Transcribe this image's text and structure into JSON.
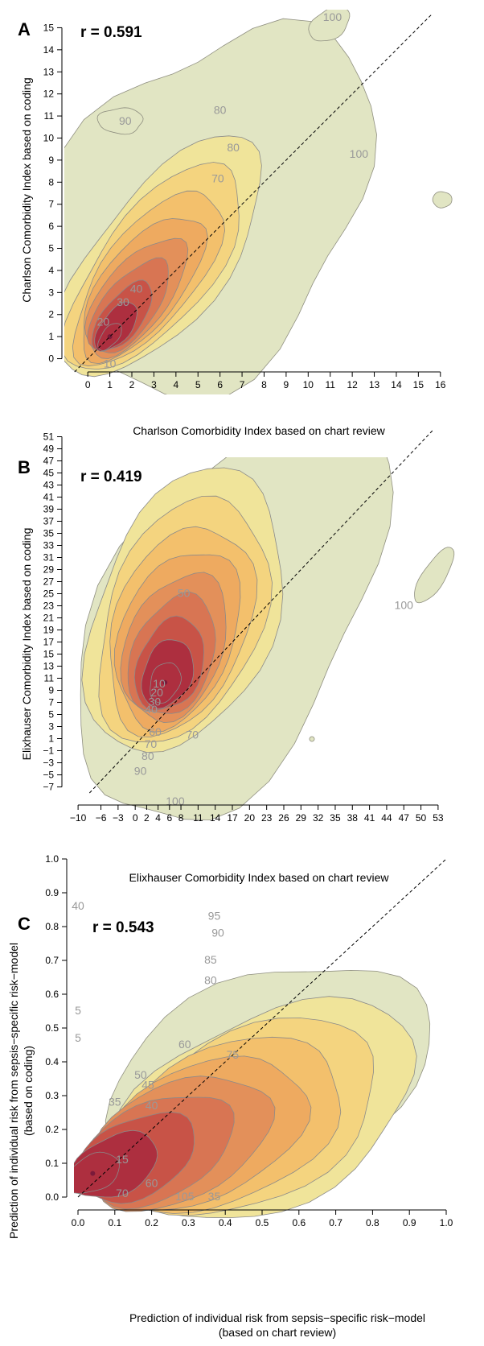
{
  "chart_data": [
    {
      "panel": "A",
      "type": "contour",
      "annotation": "r = 0.591",
      "xlabel": "Charlson Comorbidity Index based on chart review",
      "ylabel": "Charlson Comorbidity Index based on coding",
      "x_ticks": [
        0,
        1,
        2,
        3,
        4,
        5,
        6,
        7,
        8,
        9,
        10,
        11,
        12,
        13,
        14,
        15,
        16
      ],
      "y_ticks": [
        0,
        1,
        2,
        3,
        4,
        5,
        6,
        7,
        8,
        9,
        10,
        11,
        12,
        13,
        14,
        15
      ],
      "xlim": [
        -0.7,
        16.3
      ],
      "ylim": [
        -0.6,
        15.6
      ],
      "reference_line": "identity",
      "contour_labels": [
        {
          "text": "100",
          "x": 11.1,
          "y": 15.3
        },
        {
          "text": "90",
          "x": 1.7,
          "y": 10.6
        },
        {
          "text": "80",
          "x": 6.0,
          "y": 11.1
        },
        {
          "text": "80",
          "x": 6.6,
          "y": 9.4
        },
        {
          "text": "70",
          "x": 5.9,
          "y": 8.0
        },
        {
          "text": "100",
          "x": 12.3,
          "y": 9.1
        },
        {
          "text": "40",
          "x": 2.2,
          "y": 3.0
        },
        {
          "text": "30",
          "x": 1.6,
          "y": 2.4
        },
        {
          "text": "20",
          "x": 0.7,
          "y": 1.5
        },
        {
          "text": "10",
          "x": 1.0,
          "y": -0.4
        }
      ],
      "center": [
        1.0,
        1.0
      ]
    },
    {
      "panel": "B",
      "type": "contour",
      "annotation": "r = 0.419",
      "xlabel": "Elixhauser Comorbidity Index based on chart review",
      "ylabel": "Elixhauser Comorbidity Index based on coding",
      "x_ticks": [
        -10,
        -6,
        -3,
        0,
        2,
        4,
        6,
        8,
        11,
        14,
        17,
        20,
        23,
        26,
        29,
        32,
        35,
        38,
        41,
        44,
        47,
        50,
        53
      ],
      "y_ticks": [
        -7,
        -5,
        -3,
        -1,
        1,
        3,
        5,
        7,
        9,
        11,
        13,
        15,
        17,
        19,
        21,
        23,
        25,
        27,
        29,
        31,
        33,
        35,
        37,
        39,
        41,
        43,
        45,
        47,
        49,
        51
      ],
      "xlim": [
        -11,
        54
      ],
      "ylim": [
        -8,
        52
      ],
      "reference_line": "identity",
      "contour_labels": [
        {
          "text": "50",
          "x": 8.5,
          "y": 24.5
        },
        {
          "text": "10",
          "x": 4.2,
          "y": 9.5
        },
        {
          "text": "20",
          "x": 3.8,
          "y": 8.0
        },
        {
          "text": "30",
          "x": 3.4,
          "y": 6.5
        },
        {
          "text": "40",
          "x": 2.8,
          "y": 5.2
        },
        {
          "text": "60",
          "x": 3.5,
          "y": 1.5
        },
        {
          "text": "70",
          "x": 2.7,
          "y": -0.5
        },
        {
          "text": "80",
          "x": 2.2,
          "y": -2.5
        },
        {
          "text": "90",
          "x": 0.9,
          "y": -5.0
        },
        {
          "text": "70",
          "x": 10.0,
          "y": 1.0
        },
        {
          "text": "100",
          "x": 47.0,
          "y": 22.5
        },
        {
          "text": "100",
          "x": 7.0,
          "y": -10.0
        }
      ],
      "center": [
        5.2,
        10.3
      ]
    },
    {
      "panel": "C",
      "type": "contour",
      "annotation": "r = 0.543",
      "xlabel": "Prediction of individual risk from sepsis−specific risk−model",
      "xlabel2": "(based on chart review)",
      "ylabel": "Prediction of individual risk from sepsis−specific risk−model",
      "ylabel2": "(based on coding)",
      "x_ticks": [
        0.0,
        0.1,
        0.2,
        0.3,
        0.4,
        0.5,
        0.6,
        0.7,
        0.8,
        0.9,
        1.0
      ],
      "y_ticks": [
        0.0,
        0.1,
        0.2,
        0.3,
        0.4,
        0.5,
        0.6,
        0.7,
        0.8,
        0.9,
        1.0
      ],
      "xlim": [
        0,
        1
      ],
      "ylim": [
        0,
        1
      ],
      "reference_line": "identity",
      "contour_labels": [
        {
          "text": "95",
          "x": 0.37,
          "y": 0.82
        },
        {
          "text": "90",
          "x": 0.38,
          "y": 0.77
        },
        {
          "text": "85",
          "x": 0.36,
          "y": 0.69
        },
        {
          "text": "80",
          "x": 0.36,
          "y": 0.63
        },
        {
          "text": "75",
          "x": 0.42,
          "y": 0.41
        },
        {
          "text": "60",
          "x": 0.29,
          "y": 0.44
        },
        {
          "text": "50",
          "x": 0.17,
          "y": 0.35
        },
        {
          "text": "45",
          "x": 0.19,
          "y": 0.32
        },
        {
          "text": "40",
          "x": 0.2,
          "y": 0.26
        },
        {
          "text": "35",
          "x": 0.1,
          "y": 0.27
        },
        {
          "text": "15",
          "x": 0.12,
          "y": 0.1
        },
        {
          "text": "70",
          "x": 0.12,
          "y": 0.0
        },
        {
          "text": "5",
          "x": 0.0,
          "y": 0.54
        },
        {
          "text": "5",
          "x": 0.0,
          "y": 0.46
        },
        {
          "text": "40",
          "x": 0.0,
          "y": 0.85
        },
        {
          "text": "105",
          "x": 0.29,
          "y": -0.01
        },
        {
          "text": "35",
          "x": 0.37,
          "y": -0.01
        },
        {
          "text": "60",
          "x": 0.2,
          "y": 0.03
        }
      ],
      "center": [
        0.04,
        0.07
      ]
    }
  ]
}
